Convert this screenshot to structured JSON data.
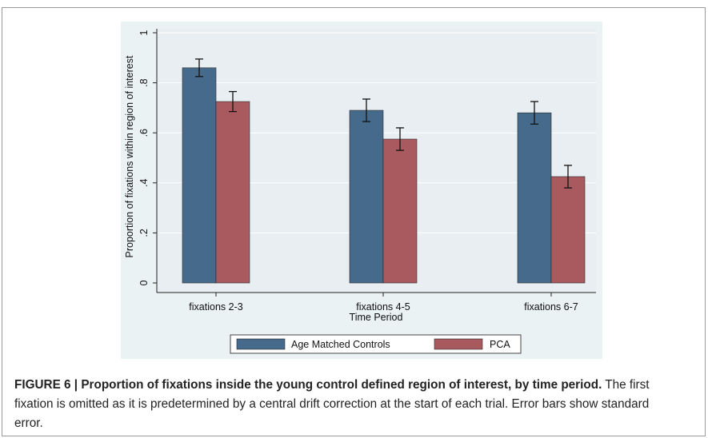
{
  "chart_data": {
    "type": "bar",
    "categories": [
      "fixations 2-3",
      "fixations 4-5",
      "fixations 6-7"
    ],
    "series": [
      {
        "name": "Age Matched Controls",
        "values": [
          0.86,
          0.69,
          0.68
        ],
        "errors": [
          0.035,
          0.045,
          0.045
        ],
        "color": "#466a8c"
      },
      {
        "name": "PCA",
        "values": [
          0.725,
          0.575,
          0.425
        ],
        "errors": [
          0.04,
          0.045,
          0.045
        ],
        "color": "#a85a5e"
      }
    ],
    "xlabel": "Time Period",
    "ylabel": "Proportion of fixations within region of interest",
    "ylim": [
      0,
      1
    ],
    "yticks": [
      0,
      0.2,
      0.4,
      0.6,
      0.8,
      1
    ],
    "ytick_labels": [
      "0",
      ".2",
      ".4",
      ".6",
      ".8",
      "1"
    ],
    "grid": true,
    "legend": "bottom",
    "plot_bg": "#e8eef2",
    "outer_bg": "#eaf2f3"
  },
  "caption": {
    "bold": "FIGURE 6 | Proportion of fixations inside the young control defined region of interest, by time period.",
    "text": " The first fixation is omitted as it is predetermined by a central drift correction at the start of each trial. Error bars show standard error."
  }
}
